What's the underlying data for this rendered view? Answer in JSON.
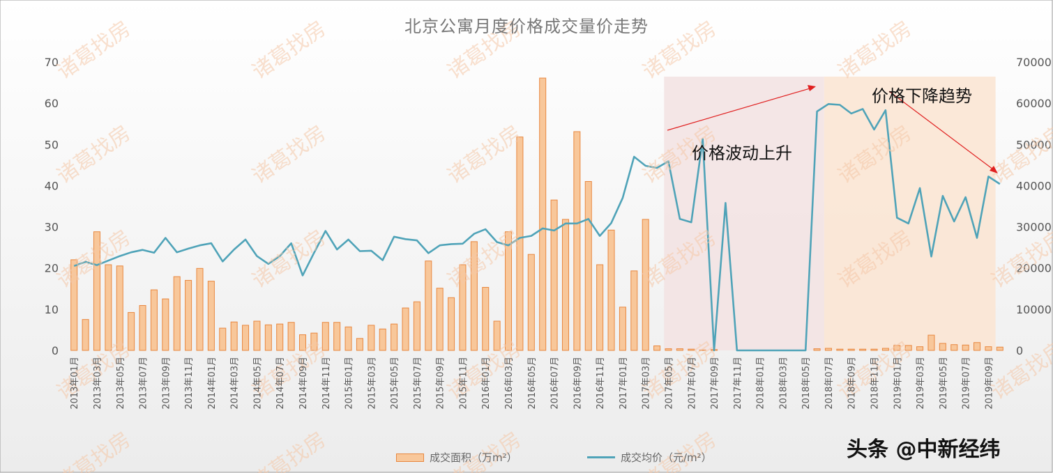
{
  "chart_data": {
    "type": "bar-line-combo",
    "title": "北京公寓月度价格成交量价走势",
    "left_axis": {
      "ticks": [
        "0",
        "10",
        "20",
        "30",
        "40",
        "50",
        "60",
        "70"
      ],
      "range": [
        0,
        70
      ]
    },
    "right_axis": {
      "ticks": [
        "0",
        "10000",
        "20000",
        "30000",
        "40000",
        "50000",
        "60000",
        "70000"
      ],
      "range": [
        0,
        70000
      ]
    },
    "x_tick_labels": [
      "2013年01月",
      "2013年03月",
      "2013年05月",
      "2013年07月",
      "2013年09月",
      "2013年11月",
      "2014年01月",
      "2014年03月",
      "2014年05月",
      "2014年07月",
      "2014年09月",
      "2014年11月",
      "2015年01月",
      "2015年03月",
      "2015年05月",
      "2015年07月",
      "2015年09月",
      "2015年11月",
      "2016年01月",
      "2016年03月",
      "2016年05月",
      "2016年07月",
      "2016年09月",
      "2016年11月",
      "2017年01月",
      "2017年03月",
      "2017年05月",
      "2017年07月",
      "2017年09月",
      "2017年11月",
      "2018年01月",
      "2018年03月",
      "2018年05月",
      "2018年07月",
      "2018年09月",
      "2018年11月",
      "2019年01月",
      "2019年03月",
      "2019年05月",
      "2019年07月",
      "2019年09月"
    ],
    "months": [
      "2013-01",
      "2013-02",
      "2013-03",
      "2013-04",
      "2013-05",
      "2013-06",
      "2013-07",
      "2013-08",
      "2013-09",
      "2013-10",
      "2013-11",
      "2013-12",
      "2014-01",
      "2014-02",
      "2014-03",
      "2014-04",
      "2014-05",
      "2014-06",
      "2014-07",
      "2014-08",
      "2014-09",
      "2014-10",
      "2014-11",
      "2014-12",
      "2015-01",
      "2015-02",
      "2015-03",
      "2015-04",
      "2015-05",
      "2015-06",
      "2015-07",
      "2015-08",
      "2015-09",
      "2015-10",
      "2015-11",
      "2015-12",
      "2016-01",
      "2016-02",
      "2016-03",
      "2016-04",
      "2016-05",
      "2016-06",
      "2016-07",
      "2016-08",
      "2016-09",
      "2016-10",
      "2016-11",
      "2016-12",
      "2017-01",
      "2017-02",
      "2017-03",
      "2017-04",
      "2017-05",
      "2017-06",
      "2017-07",
      "2017-08",
      "2017-09",
      "2017-10",
      "2017-11",
      "2017-12",
      "2018-01",
      "2018-02",
      "2018-03",
      "2018-04",
      "2018-05",
      "2018-06",
      "2018-07",
      "2018-08",
      "2018-09",
      "2018-10",
      "2018-11",
      "2018-12",
      "2019-01",
      "2019-02",
      "2019-03",
      "2019-04",
      "2019-05",
      "2019-06",
      "2019-07",
      "2019-08",
      "2019-09",
      "2019-10"
    ],
    "series": [
      {
        "name": "成交面积（万m²）",
        "type": "bar",
        "axis": "left",
        "color": "#f8c79a",
        "stroke": "#e8873f",
        "values": [
          22,
          7.5,
          28.8,
          20.8,
          20.5,
          9.2,
          10.9,
          14.7,
          12.5,
          17.9,
          17,
          19.9,
          16.8,
          5.4,
          6.9,
          6.1,
          7.1,
          6.2,
          6.4,
          6.8,
          3.8,
          4.2,
          6.8,
          6.8,
          5.7,
          2.9,
          6.1,
          5.2,
          6.4,
          10.3,
          11.8,
          21.7,
          15.1,
          12.8,
          20.8,
          26.4,
          15.3,
          7.1,
          28.8,
          51.8,
          23.3,
          66.1,
          36.5,
          31.8,
          53.1,
          41,
          20.8,
          29.2,
          10.5,
          19.3,
          31.8,
          1.1,
          0.4,
          0.4,
          0.3,
          0.1,
          0.2,
          0,
          0,
          0,
          0,
          0,
          0,
          0,
          0,
          0.4,
          0.5,
          0.3,
          0.3,
          0.3,
          0.3,
          0.5,
          1.2,
          1.2,
          0.9,
          3.7,
          1.7,
          1.4,
          1.3,
          1.9,
          0.9,
          0.8
        ]
      },
      {
        "name": "成交均价（元/m²）",
        "type": "line",
        "axis": "right",
        "color": "#4fa3b8",
        "values": [
          20500,
          21500,
          20700,
          21800,
          22900,
          23800,
          24400,
          23700,
          27300,
          23800,
          24700,
          25500,
          26000,
          21600,
          24500,
          26900,
          22900,
          21000,
          22900,
          26000,
          18200,
          23700,
          29000,
          24500,
          26900,
          24100,
          24200,
          21900,
          27600,
          27000,
          26700,
          23600,
          25500,
          25800,
          25900,
          28300,
          29400,
          26300,
          25500,
          27300,
          27800,
          29600,
          29100,
          30800,
          30800,
          31900,
          27800,
          30900,
          37000,
          47000,
          44800,
          44300,
          45900,
          31900,
          31100,
          51300,
          0,
          35800,
          0,
          0,
          0,
          0,
          0,
          0,
          0,
          58000,
          59800,
          59600,
          57500,
          58600,
          53600,
          58300,
          32200,
          30800,
          39400,
          22800,
          37500,
          31300,
          37200,
          27300,
          42200,
          40400
        ]
      }
    ],
    "shaded_regions": [
      {
        "label": "价格波动上升",
        "from": "2017-05",
        "to": "2018-06",
        "color": "#f3e3e3"
      },
      {
        "label": "价格下降趋势",
        "from": "2018-07",
        "to": "2019-09",
        "color": "#fbe6d4"
      }
    ]
  },
  "annotations": {
    "rise": "价格波动上升",
    "fall": "价格下降趋势"
  },
  "legend": {
    "area": "成交面积（万m²）",
    "price": "成交均价（元/m²）"
  },
  "watermark": "诸葛找房",
  "source": "头条 @中新经纬"
}
